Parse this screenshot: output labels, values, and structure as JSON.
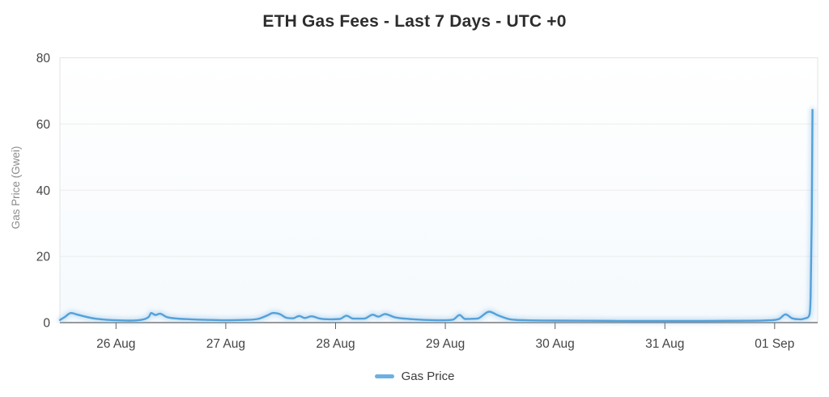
{
  "chart_data": {
    "type": "line",
    "title": "ETH Gas Fees - Last 7 Days - UTC +0",
    "xlabel": "",
    "ylabel": "Gas Price (Gwei)",
    "x_unit": "days since 26 Aug 00:00 UTC+0 (negative = 25 Aug)",
    "xlim": [
      -0.511,
      6.392
    ],
    "ylim": [
      0,
      80
    ],
    "y_ticks": [
      0,
      20,
      40,
      60,
      80
    ],
    "x_ticks": [
      {
        "pos": 0,
        "label": "26 Aug"
      },
      {
        "pos": 1,
        "label": "27 Aug"
      },
      {
        "pos": 2,
        "label": "28 Aug"
      },
      {
        "pos": 3,
        "label": "29 Aug"
      },
      {
        "pos": 4,
        "label": "30 Aug"
      },
      {
        "pos": 5,
        "label": "31 Aug"
      },
      {
        "pos": 6,
        "label": "01 Sep"
      }
    ],
    "grid": "horizontal",
    "legend_position": "bottom",
    "series": [
      {
        "name": "Gas Price",
        "color": "#54a1d9",
        "points": [
          [
            -0.51,
            0.8
          ],
          [
            -0.47,
            1.6
          ],
          [
            -0.41,
            2.9
          ],
          [
            -0.36,
            2.5
          ],
          [
            -0.28,
            1.8
          ],
          [
            -0.19,
            1.2
          ],
          [
            -0.1,
            0.9
          ],
          [
            0.0,
            0.7
          ],
          [
            0.12,
            0.6
          ],
          [
            0.24,
            0.9
          ],
          [
            0.3,
            1.8
          ],
          [
            0.32,
            2.9
          ],
          [
            0.36,
            2.3
          ],
          [
            0.4,
            2.7
          ],
          [
            0.46,
            1.7
          ],
          [
            0.53,
            1.3
          ],
          [
            0.68,
            1.0
          ],
          [
            0.86,
            0.8
          ],
          [
            0.99,
            0.7
          ],
          [
            1.16,
            0.8
          ],
          [
            1.29,
            1.1
          ],
          [
            1.38,
            2.2
          ],
          [
            1.43,
            2.9
          ],
          [
            1.49,
            2.6
          ],
          [
            1.55,
            1.5
          ],
          [
            1.61,
            1.3
          ],
          [
            1.67,
            2.0
          ],
          [
            1.72,
            1.4
          ],
          [
            1.78,
            1.9
          ],
          [
            1.86,
            1.2
          ],
          [
            1.95,
            1.0
          ],
          [
            2.04,
            1.1
          ],
          [
            2.1,
            2.1
          ],
          [
            2.16,
            1.2
          ],
          [
            2.26,
            1.2
          ],
          [
            2.34,
            2.4
          ],
          [
            2.39,
            1.8
          ],
          [
            2.45,
            2.6
          ],
          [
            2.54,
            1.6
          ],
          [
            2.67,
            1.1
          ],
          [
            2.82,
            0.8
          ],
          [
            2.96,
            0.7
          ],
          [
            3.07,
            0.9
          ],
          [
            3.13,
            2.3
          ],
          [
            3.18,
            1.1
          ],
          [
            3.29,
            1.2
          ],
          [
            3.4,
            3.3
          ],
          [
            3.48,
            2.2
          ],
          [
            3.59,
            1.0
          ],
          [
            3.74,
            0.7
          ],
          [
            4.0,
            0.6
          ],
          [
            4.33,
            0.55
          ],
          [
            4.7,
            0.5
          ],
          [
            5.0,
            0.5
          ],
          [
            5.36,
            0.5
          ],
          [
            5.73,
            0.55
          ],
          [
            5.95,
            0.7
          ],
          [
            6.04,
            1.1
          ],
          [
            6.1,
            2.5
          ],
          [
            6.16,
            1.3
          ],
          [
            6.24,
            1.0
          ],
          [
            6.29,
            1.4
          ],
          [
            6.315,
            2.2
          ],
          [
            6.328,
            8
          ],
          [
            6.338,
            32
          ],
          [
            6.345,
            64.3
          ]
        ]
      }
    ]
  },
  "style": {
    "line_color": "#54a1d9",
    "line_glow_color": "#85bce6",
    "legend_marker_color": "#6cb0e2",
    "grid_color": "#ececec",
    "border_color": "#e3e3e3",
    "axis_color": "#5e5e5e",
    "tick_label_color": "#454545",
    "title_color": "#2d2d2d",
    "background": "#ffffff"
  }
}
